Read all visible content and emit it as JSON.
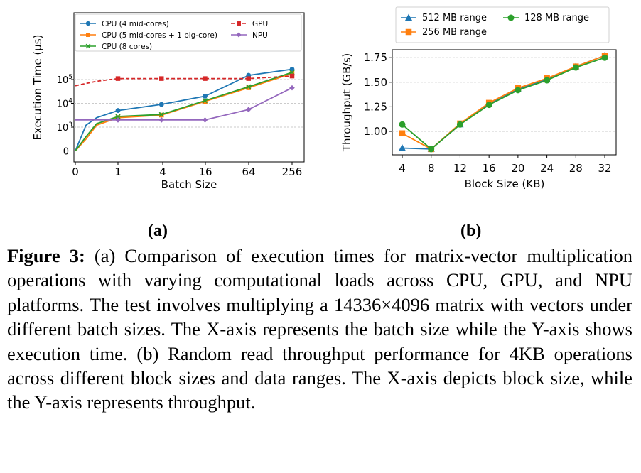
{
  "chart_data": [
    {
      "type": "line",
      "xlabel": "Batch Size",
      "ylabel": "Execution Time (μs)",
      "x_ticks": [
        "0",
        "1",
        "4",
        "16",
        "64",
        "256"
      ],
      "x_ticks_values": [
        0,
        1,
        4,
        16,
        64,
        256
      ],
      "y_ticks": [
        {
          "value": 0,
          "base": "0",
          "exp": ""
        },
        {
          "value": 1000,
          "base": "10",
          "exp": "3"
        },
        {
          "value": 10000,
          "base": "10",
          "exp": "4"
        },
        {
          "value": 100000,
          "base": "10",
          "exp": "5"
        }
      ],
      "y_scale": "symlog",
      "grid": "horizontal dashed",
      "legend_position": "top",
      "series": [
        {
          "name": "CPU (4 mid-cores)",
          "color": "#1f77b4",
          "marker": "circle",
          "dashed": false,
          "x": [
            0,
            0.25,
            0.5,
            1,
            4,
            16,
            64,
            256
          ],
          "y": [
            0,
            1200,
            2500,
            5000,
            9000,
            20000,
            150000,
            270000
          ]
        },
        {
          "name": "CPU (5 mid-cores + 1 big-core)",
          "color": "#ff7f0e",
          "marker": "square",
          "dashed": false,
          "x": [
            0,
            0.25,
            0.5,
            1,
            4,
            16,
            64,
            256
          ],
          "y": [
            0,
            500,
            1200,
            2500,
            3200,
            12000,
            45000,
            180000
          ]
        },
        {
          "name": "CPU (8 cores)",
          "color": "#2ca02c",
          "marker": "x",
          "dashed": false,
          "x": [
            0,
            0.25,
            0.5,
            1,
            4,
            16,
            64,
            256
          ],
          "y": [
            0,
            600,
            1400,
            2800,
            3400,
            13000,
            50000,
            200000
          ]
        },
        {
          "name": "GPU",
          "color": "#d62728",
          "marker": "square",
          "dashed": true,
          "x": [
            0,
            0.5,
            1,
            4,
            16,
            64,
            256
          ],
          "y": [
            55000,
            85000,
            110000,
            110000,
            110000,
            110000,
            140000
          ]
        },
        {
          "name": "NPU",
          "color": "#9467bd",
          "marker": "diamond",
          "dashed": false,
          "x": [
            0,
            1,
            4,
            16,
            64,
            256
          ],
          "y": [
            2000,
            2000,
            2000,
            2000,
            5500,
            45000
          ]
        }
      ]
    },
    {
      "type": "line",
      "xlabel": "Block Size (KB)",
      "ylabel": "Throughput (GB/s)",
      "x": [
        4,
        8,
        12,
        16,
        20,
        24,
        28,
        32
      ],
      "x_ticks": [
        "4",
        "8",
        "12",
        "16",
        "20",
        "24",
        "28",
        "32"
      ],
      "y_ticks": [
        "1.00",
        "1.25",
        "1.50",
        "1.75"
      ],
      "y_ticks_values": [
        1.0,
        1.25,
        1.5,
        1.75
      ],
      "ylim": [
        0.8,
        1.8
      ],
      "grid": "horizontal dashed",
      "legend_position": "top",
      "series": [
        {
          "name": "512 MB range",
          "color": "#1f77b4",
          "marker": "triangle",
          "values": [
            0.83,
            0.82,
            1.07,
            1.28,
            1.43,
            1.53,
            1.66,
            1.77
          ]
        },
        {
          "name": "256 MB range",
          "color": "#ff7f0e",
          "marker": "square",
          "values": [
            0.98,
            0.82,
            1.08,
            1.29,
            1.44,
            1.54,
            1.66,
            1.77
          ]
        },
        {
          "name": "128 MB range",
          "color": "#2ca02c",
          "marker": "circle",
          "values": [
            1.07,
            0.82,
            1.07,
            1.27,
            1.42,
            1.52,
            1.65,
            1.75
          ]
        }
      ]
    }
  ],
  "labels": {
    "a": "(a)",
    "b": "(b)"
  },
  "caption": {
    "label": "Figure 3:",
    "text": "(a) Comparison of execution times for matrix-vector multiplication operations with varying computational loads across CPU, GPU, and NPU platforms. The test involves multiplying a 14336×4096 matrix with vectors under different batch sizes. The X-axis represents the batch size while the Y-axis shows execution time. (b) Random read throughput performance for 4KB operations across different block sizes and data ranges. The X-axis depicts block size, while the Y-axis represents throughput."
  }
}
